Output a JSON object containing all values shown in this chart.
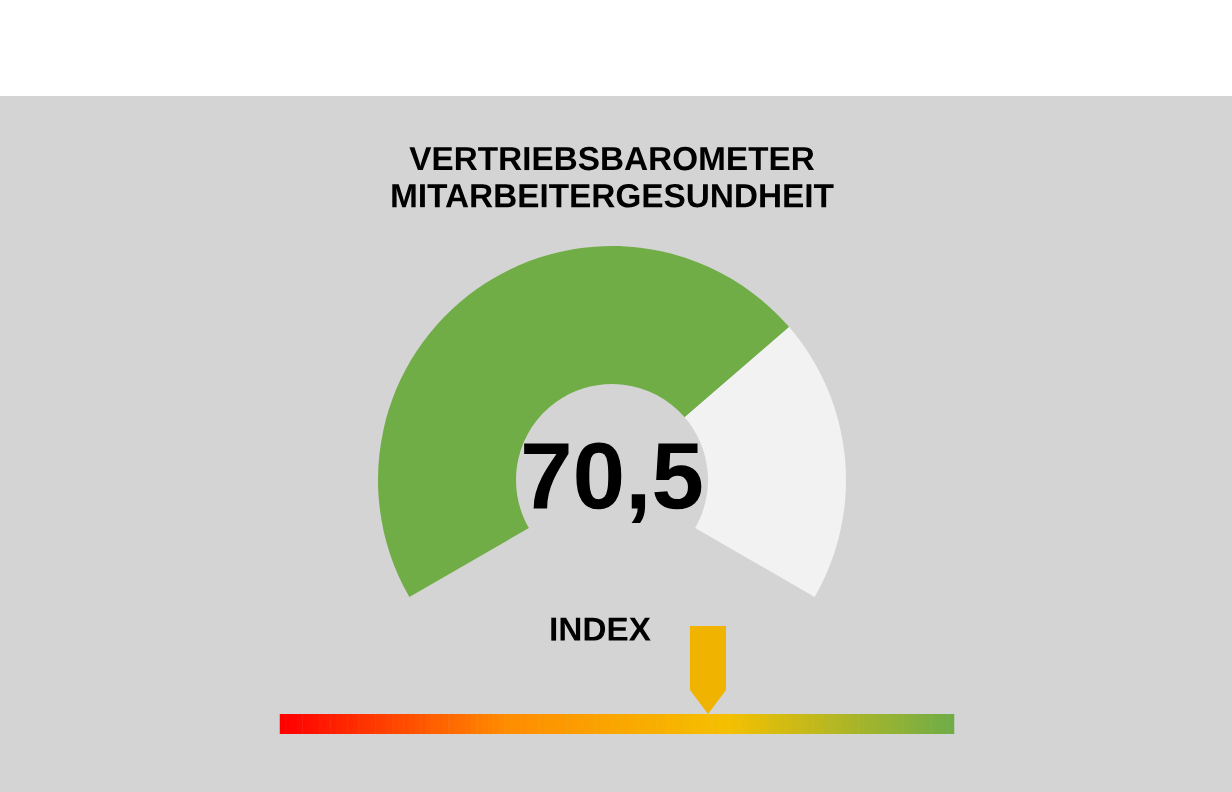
{
  "chart_data": {
    "type": "donut",
    "title": "VERTRIEBSBAROMETER\nMITARBEITERGESUNDHEIT",
    "categories": [
      null,
      null
    ],
    "values": [
      70.5,
      29.5
    ],
    "colors": [
      "#70ad47",
      "#f2f2f2"
    ],
    "annotations": [
      "70,5",
      "INDEX"
    ]
  }
}
